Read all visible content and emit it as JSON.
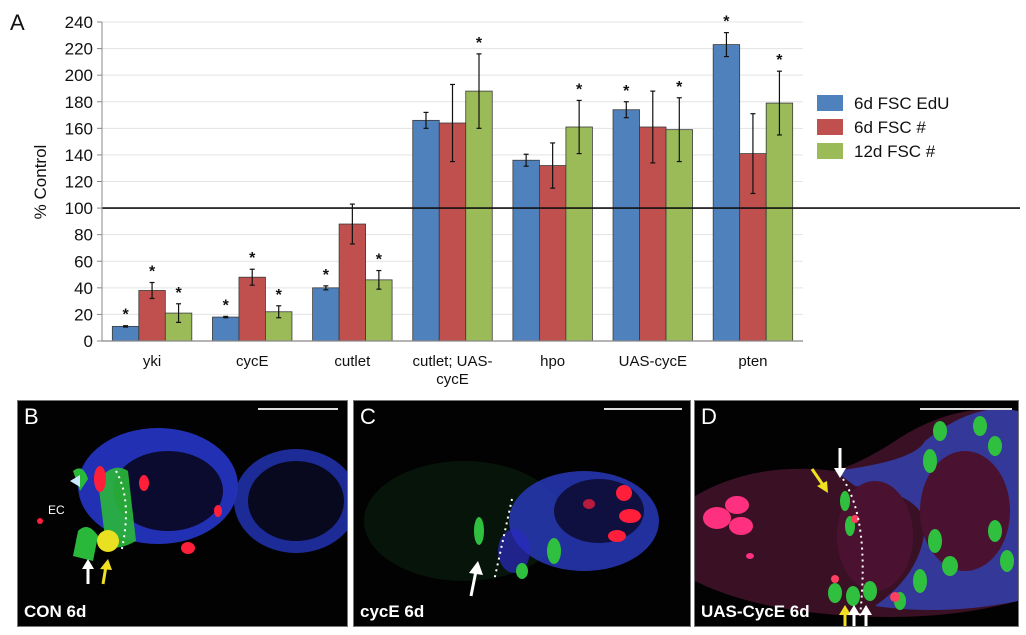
{
  "figure": {
    "panel_A_letter": "A",
    "panels": [
      {
        "letter": "B",
        "caption": "CON 6d",
        "annotation": "EC"
      },
      {
        "letter": "C",
        "caption": "cycE 6d"
      },
      {
        "letter": "D",
        "caption": "UAS-CycE 6d"
      }
    ]
  },
  "chart_data": {
    "type": "bar",
    "title": "",
    "xlabel": "",
    "ylabel": "% Control",
    "ylim": [
      0,
      240
    ],
    "yticks": [
      0,
      20,
      40,
      60,
      80,
      100,
      120,
      140,
      160,
      180,
      200,
      220,
      240
    ],
    "grid": true,
    "reference_line": 100,
    "legend_position": "right",
    "categories": [
      "yki",
      "cycE",
      "cutlet",
      "cutlet; UAS-cycE",
      "hpo",
      "UAS-cycE",
      "pten"
    ],
    "category_label_lines": [
      [
        "yki"
      ],
      [
        "cycE"
      ],
      [
        "cutlet"
      ],
      [
        "cutlet; UAS-",
        "cycE"
      ],
      [
        "hpo"
      ],
      [
        "UAS-cycE"
      ],
      [
        "pten"
      ]
    ],
    "series": [
      {
        "name": "6d FSC EdU",
        "color": "#4f81bd",
        "values": [
          11,
          18,
          40,
          166,
          136,
          174,
          223
        ],
        "error": [
          0.5,
          0.5,
          1.5,
          6,
          4.5,
          6,
          9
        ],
        "significant": [
          true,
          true,
          true,
          false,
          false,
          true,
          true
        ]
      },
      {
        "name": "6d FSC #",
        "color": "#c0504d",
        "values": [
          38,
          48,
          88,
          164,
          132,
          161,
          141
        ],
        "error": [
          6,
          6,
          15,
          29,
          17,
          27,
          30
        ],
        "significant": [
          true,
          true,
          false,
          false,
          false,
          false,
          false
        ]
      },
      {
        "name": "12d FSC #",
        "color": "#9bbb59",
        "values": [
          21,
          22,
          46,
          188,
          161,
          159,
          179
        ],
        "error": [
          7,
          4.5,
          7,
          28,
          20,
          24,
          24
        ],
        "significant": [
          true,
          true,
          true,
          true,
          true,
          true,
          true
        ]
      }
    ]
  }
}
